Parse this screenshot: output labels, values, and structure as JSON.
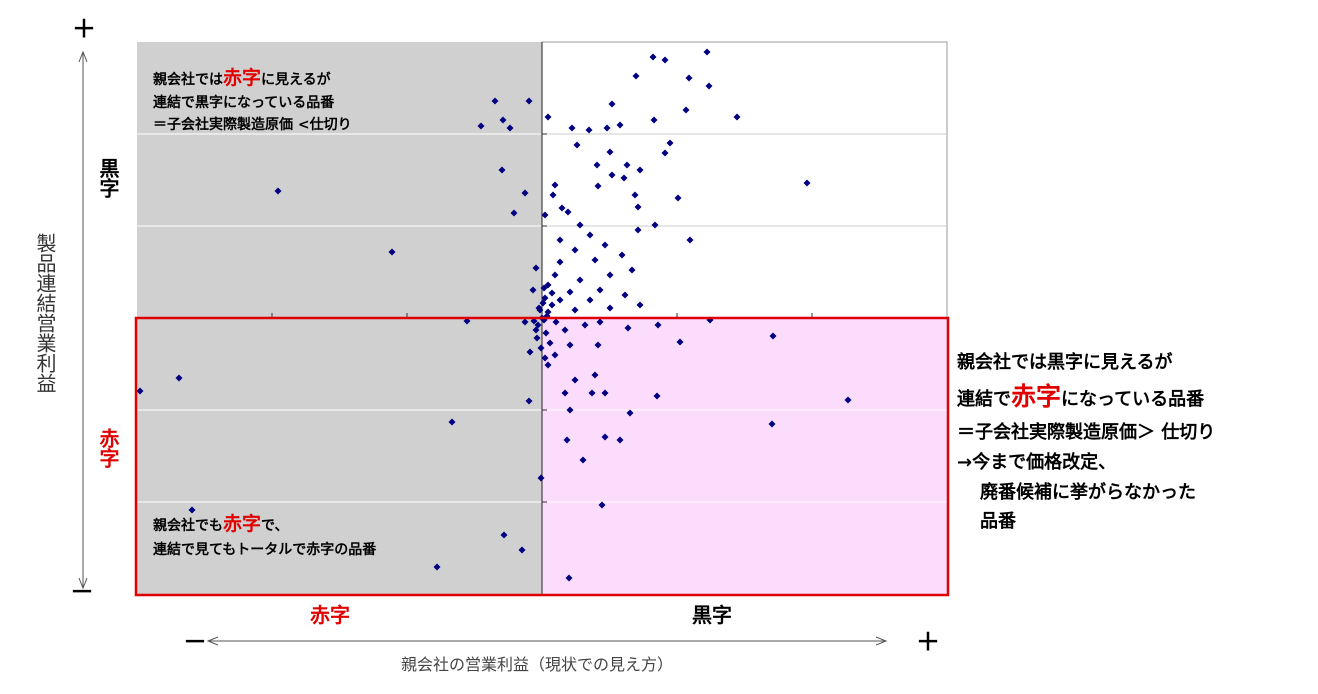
{
  "chart_data": {
    "type": "scatter",
    "color": "#000080",
    "xlim": [
      -405,
      405
    ],
    "ylim": [
      -277,
      276
    ],
    "xticks": [
      -270,
      -135,
      0,
      135,
      270
    ],
    "yticks": [
      -184,
      -92,
      0,
      92,
      184
    ],
    "x_title": "親会社の営業利益（現状での見え方）",
    "y_title": "製品連結営業利益",
    "x_neg": "赤字",
    "x_pos": "黒字",
    "y_neg": "赤字",
    "y_pos": "黒字",
    "x_minus": "－",
    "x_plus": "＋",
    "y_minus": "－",
    "y_plus": "＋",
    "note_top_left": {
      "l1": [
        "親会社では",
        "赤字",
        "に見えるが"
      ],
      "l2": "連結で黒字になっている品番",
      "l3": "＝子会社実際製造原価 <仕切り"
    },
    "note_bottom_left": {
      "l1": [
        "親会社でも",
        "赤字",
        "で、"
      ],
      "l2": "連結で見てもトータルで赤字の品番"
    },
    "note_right": {
      "l1": "親会社では黒字に見えるが",
      "l2": [
        "連結で",
        "赤字",
        "になっている品番"
      ],
      "l3": "＝子会社実際製造原価＞ 仕切り",
      "l4": "→今まで価格改定、",
      "l5": "廃番候補に挙がらなかった",
      "l6": "品番"
    },
    "x": [
      165,
      111,
      123,
      94,
      147,
      167,
      70,
      144,
      195,
      112,
      78,
      65,
      30,
      47,
      6,
      128,
      123,
      35,
      68,
      55,
      85,
      98,
      265,
      70,
      82,
      56,
      93,
      136,
      96,
      13,
      20,
      26,
      11,
      3,
      113,
      96,
      38,
      48,
      18,
      148,
      63,
      33,
      80,
      53,
      18,
      90,
      68,
      38,
      13,
      6,
      58,
      28,
      83,
      48,
      18,
      3,
      10,
      33,
      68,
      98,
      168,
      6,
      2,
      -2,
      -4,
      14,
      23,
      43,
      58,
      86,
      116,
      138,
      231,
      56,
      28,
      13,
      6,
      33,
      53,
      23,
      50,
      63,
      115,
      306,
      28,
      88,
      230,
      25,
      63,
      78,
      41,
      -1,
      60,
      27,
      -47,
      -13,
      -39,
      -61,
      -32,
      -40,
      -17,
      -264,
      -28,
      -150,
      -6,
      -9,
      -75,
      -17,
      -12,
      -363,
      -402,
      -13,
      -90,
      -350,
      -38,
      -20,
      -105,
      -3,
      1,
      4,
      -5,
      8,
      2,
      -1,
      0,
      5,
      -6,
      10,
      3,
      -8
    ],
    "y": [
      266,
      261,
      258,
      242,
      240,
      232,
      214,
      208,
      201,
      198,
      193,
      190,
      190,
      188,
      201,
      175,
      165,
      173,
      166,
      153,
      153,
      148,
      135,
      143,
      140,
      132,
      123,
      120,
      111,
      133,
      110,
      106,
      123,
      103,
      93,
      88,
      93,
      83,
      78,
      78,
      73,
      68,
      63,
      58,
      56,
      48,
      43,
      38,
      43,
      33,
      28,
      26,
      23,
      18,
      18,
      20,
      13,
      8,
      10,
      13,
      -2,
      6,
      -2,
      8,
      -7,
      -4,
      -12,
      -7,
      -4,
      -10,
      -7,
      -24,
      -18,
      -27,
      -27,
      -37,
      -47,
      -62,
      -57,
      -75,
      -75,
      -75,
      -78,
      -82,
      -92,
      -95,
      -106,
      -122,
      -119,
      -122,
      -142,
      -160,
      -187,
      -260,
      217,
      217,
      198,
      192,
      190,
      148,
      125,
      127,
      105,
      66,
      50,
      28,
      -3,
      -4,
      -34,
      -60,
      -73,
      -83,
      -104,
      -192,
      -217,
      -232,
      -249,
      10,
      15,
      -15,
      -20,
      -25,
      30,
      -30,
      0,
      2,
      -12,
      25,
      -40,
      -3
    ]
  }
}
